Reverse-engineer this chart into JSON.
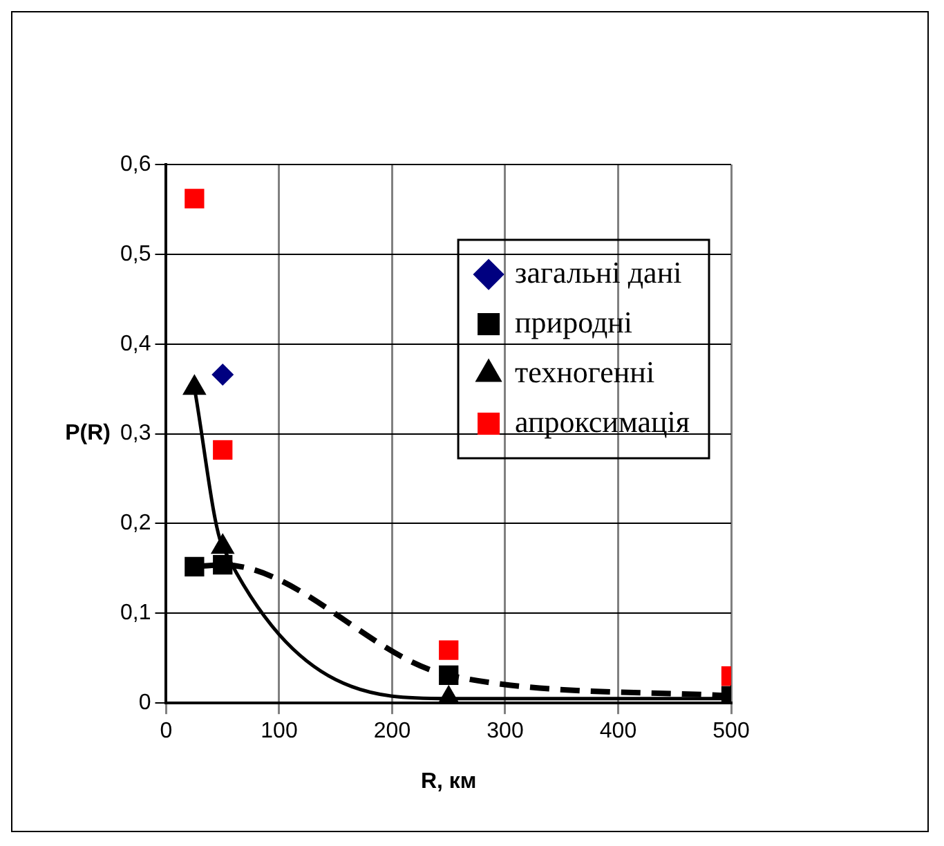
{
  "chart_data": {
    "type": "line",
    "xlabel": "R, км",
    "ylabel": "P(R)",
    "x": [
      25,
      50,
      250,
      500
    ],
    "series": [
      {
        "name": "загальні дані",
        "type": "scatter",
        "color": "#000080",
        "marker": "diamond",
        "values": [
          null,
          0.366,
          null,
          null
        ]
      },
      {
        "name": "природні",
        "type": "line",
        "color": "#000000",
        "marker": "square",
        "line_style": "dashed",
        "values": [
          0.152,
          0.154,
          0.031,
          0.008
        ]
      },
      {
        "name": "техногенні",
        "type": "line",
        "color": "#000000",
        "marker": "triangle",
        "line_style": "solid",
        "values": [
          0.351,
          0.174,
          0.005,
          0.005
        ]
      },
      {
        "name": "апроксимація",
        "type": "scatter",
        "color": "#ff0000",
        "marker": "square",
        "values": [
          0.562,
          0.282,
          0.059,
          0.03
        ]
      }
    ],
    "xlim": [
      0,
      500
    ],
    "xticks": [
      0,
      100,
      200,
      300,
      400,
      500
    ],
    "ylim": [
      0,
      0.6
    ],
    "yticks": [
      0,
      {
        "value": 0.1,
        "label": "0,1"
      },
      {
        "value": 0.2,
        "label": "0,2"
      },
      {
        "value": 0.3,
        "label": "0,3"
      },
      {
        "value": 0.4,
        "label": "0,4"
      },
      {
        "value": 0.5,
        "label": "0,5"
      },
      {
        "value": 0.6,
        "label": "0,6"
      }
    ],
    "grid": true,
    "legend": "top right"
  }
}
